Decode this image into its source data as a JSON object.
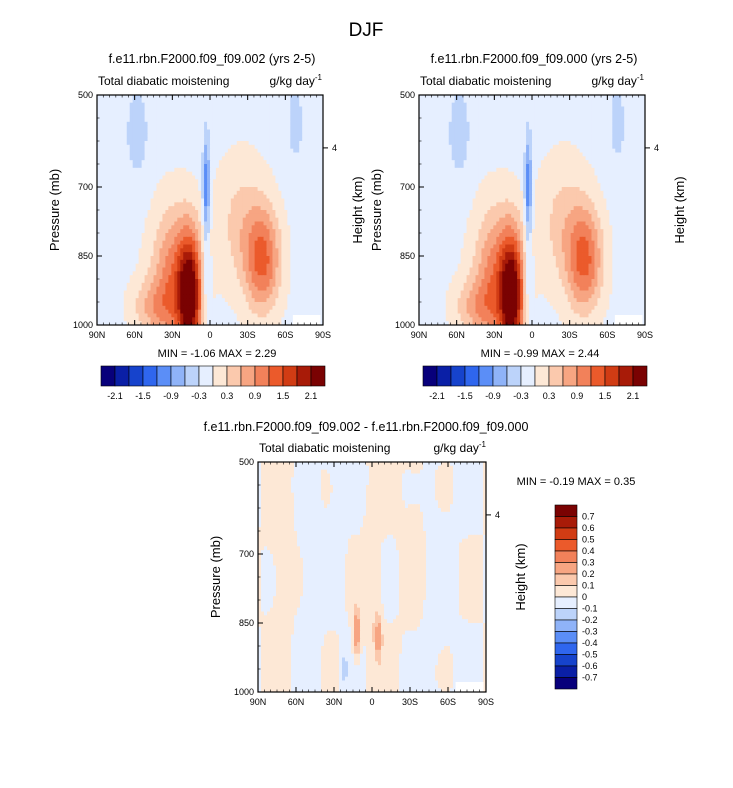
{
  "page_title": "DJF",
  "panels": [
    {
      "title": "f.e11.rbn.F2000.f09_f09.002 (yrs 2-5)",
      "variable": "Total diabatic moistening",
      "units": "g/kg day",
      "units_exp": "-1",
      "stats": {
        "min_label": "MIN =",
        "min": "-1.06",
        "max_label": "MAX =",
        "max": "2.29"
      }
    },
    {
      "title": "f.e11.rbn.F2000.f09_f09.000 (yrs 2-5)",
      "variable": "Total diabatic moistening",
      "units": "g/kg day",
      "units_exp": "-1",
      "stats": {
        "min_label": "MIN =",
        "min": "-0.99",
        "max_label": "MAX =",
        "max": "2.44"
      }
    },
    {
      "title": "f.e11.rbn.F2000.f09_f09.002 - f.e11.rbn.F2000.f09_f09.000",
      "variable": "Total diabatic moistening",
      "units": "g/kg day",
      "units_exp": "-1",
      "stats": {
        "min_label": "MIN =",
        "min": "-0.19",
        "max_label": "MAX =",
        "max": "0.35"
      }
    }
  ],
  "axes": {
    "ylabel": "Pressure (mb)",
    "ylabel_right": "Height (km)",
    "y_ticks": [
      "500",
      "700",
      "850",
      "1000"
    ],
    "y_right_ticks": [
      "4"
    ],
    "x_ticks": [
      "90N",
      "60N",
      "30N",
      "0",
      "30S",
      "60S",
      "90S"
    ]
  },
  "colorbar_main": {
    "labels": [
      "-2.1",
      "-1.5",
      "-0.9",
      "-0.3",
      "0.3",
      "0.9",
      "1.5",
      "2.1"
    ],
    "colors": [
      "#08007b",
      "#0a1fa6",
      "#1643cc",
      "#2f66ee",
      "#5b8ef7",
      "#8fb3f8",
      "#bcd3fa",
      "#e6efff",
      "#fde8d6",
      "#fbc9ad",
      "#f7a582",
      "#f2815a",
      "#eb5a2b",
      "#d13c14",
      "#a81b08",
      "#7a0202"
    ]
  },
  "colorbar_diff": {
    "labels": [
      "0.7",
      "0.6",
      "0.5",
      "0.4",
      "0.3",
      "0.2",
      "0.1",
      "0",
      "-0.1",
      "-0.2",
      "-0.3",
      "-0.4",
      "-0.5",
      "-0.6",
      "-0.7"
    ],
    "colors": [
      "#7a0202",
      "#a81b08",
      "#d13c14",
      "#eb5a2b",
      "#f2815a",
      "#f7a582",
      "#fbc9ad",
      "#fde8d6",
      "#e6efff",
      "#bcd3fa",
      "#8fb3f8",
      "#5b8ef7",
      "#2f66ee",
      "#1643cc",
      "#0a1fa6",
      "#08007b"
    ]
  },
  "chart_data": [
    {
      "type": "heatmap",
      "title": "f.e11.rbn.F2000.f09_f09.002 (yrs 2-5)",
      "subtitle": "Total diabatic moistening",
      "units": "g/kg day-1",
      "xlabel": "",
      "ylabel": "Pressure (mb)",
      "y2label": "Height (km)",
      "xlim": [
        90,
        -90
      ],
      "ylim": [
        1000,
        500
      ],
      "xticks": [
        "90N",
        "60N",
        "30N",
        "0",
        "30S",
        "60S",
        "90S"
      ],
      "yticks": [
        500,
        700,
        850,
        1000
      ],
      "min": -1.06,
      "max": 2.29,
      "features": [
        {
          "kind": "max",
          "lat": 15,
          "p": 930,
          "value": 2.1
        },
        {
          "kind": "max",
          "lat": -45,
          "p": 860,
          "value": 1.2
        },
        {
          "kind": "min",
          "lat": 2,
          "p": 700,
          "value": -1.0
        }
      ]
    },
    {
      "type": "heatmap",
      "title": "f.e11.rbn.F2000.f09_f09.000 (yrs 2-5)",
      "subtitle": "Total diabatic moistening",
      "units": "g/kg day-1",
      "xlabel": "",
      "ylabel": "Pressure (mb)",
      "y2label": "Height (km)",
      "xlim": [
        90,
        -90
      ],
      "ylim": [
        1000,
        500
      ],
      "xticks": [
        "90N",
        "60N",
        "30N",
        "0",
        "30S",
        "60S",
        "90S"
      ],
      "yticks": [
        500,
        700,
        850,
        1000
      ],
      "min": -0.99,
      "max": 2.44,
      "features": [
        {
          "kind": "max",
          "lat": 15,
          "p": 930,
          "value": 2.2
        },
        {
          "kind": "max",
          "lat": -45,
          "p": 860,
          "value": 1.3
        },
        {
          "kind": "min",
          "lat": 2,
          "p": 700,
          "value": -0.9
        }
      ]
    },
    {
      "type": "heatmap",
      "title": "f.e11.rbn.F2000.f09_f09.002 - f.e11.rbn.F2000.f09_f09.000",
      "subtitle": "Total diabatic moistening",
      "units": "g/kg day-1",
      "xlabel": "",
      "ylabel": "Pressure (mb)",
      "y2label": "Height (km)",
      "xlim": [
        90,
        -90
      ],
      "ylim": [
        1000,
        500
      ],
      "xticks": [
        "90N",
        "60N",
        "30N",
        "0",
        "30S",
        "60S",
        "90S"
      ],
      "yticks": [
        500,
        700,
        850,
        1000
      ],
      "min": -0.19,
      "max": 0.35,
      "features": [
        {
          "kind": "max",
          "lat": 12,
          "p": 870,
          "value": 0.35
        },
        {
          "kind": "max",
          "lat": -5,
          "p": 880,
          "value": 0.25
        },
        {
          "kind": "min",
          "lat": 22,
          "p": 950,
          "value": -0.15
        }
      ]
    }
  ]
}
